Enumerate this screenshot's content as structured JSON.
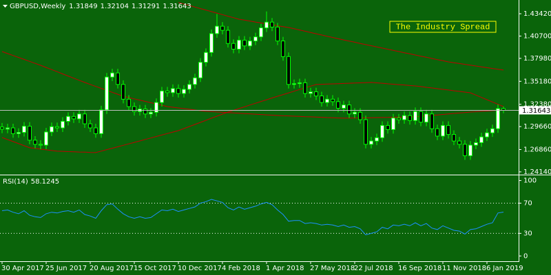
{
  "chart_data": [
    {
      "type": "candlestick",
      "title": "GBPUSD,Weekly",
      "annotation": "The Industry Spread",
      "up_color": "#ffffff",
      "down_color": "#000000",
      "wick_color": "#00ff00",
      "categories": [
        "30 Apr 2017",
        null,
        null,
        null,
        null,
        null,
        null,
        null,
        "25 Jun 2017",
        null,
        null,
        null,
        null,
        null,
        null,
        null,
        "20 Aug 2017",
        null,
        null,
        null,
        null,
        null,
        null,
        null,
        "15 Oct 2017",
        null,
        null,
        null,
        null,
        null,
        null,
        null,
        "10 Dec 2017",
        null,
        null,
        null,
        null,
        null,
        null,
        null,
        "4 Feb 2018",
        null,
        null,
        null,
        null,
        null,
        null,
        null,
        "1 Apr 2018",
        null,
        null,
        null,
        null,
        null,
        null,
        null,
        "27 May 2018",
        null,
        null,
        null,
        null,
        null,
        null,
        null,
        "22 Jul 2018",
        null,
        null,
        null,
        null,
        null,
        null,
        null,
        "16 Sep 2018",
        null,
        null,
        null,
        null,
        null,
        null,
        null,
        "11 Nov 2018",
        null,
        null,
        null,
        null,
        null,
        null,
        null,
        "6 Jan 2019",
        null,
        null,
        null
      ],
      "open": [
        1.296,
        1.2935,
        1.295,
        1.288,
        1.2895,
        1.297,
        1.28,
        1.275,
        1.274,
        1.29,
        1.2965,
        1.295,
        1.303,
        1.309,
        1.306,
        1.312,
        1.3,
        1.295,
        1.288,
        1.317,
        1.357,
        1.362,
        1.348,
        1.33,
        1.321,
        1.315,
        1.318,
        1.312,
        1.314,
        1.326,
        1.34,
        1.338,
        1.343,
        1.337,
        1.342,
        1.348,
        1.356,
        1.375,
        1.387,
        1.41,
        1.419,
        1.414,
        1.398,
        1.391,
        1.402,
        1.395,
        1.401,
        1.406,
        1.417,
        1.424,
        1.418,
        1.401,
        1.382,
        1.348,
        1.349,
        1.35,
        1.337,
        1.339,
        1.334,
        1.326,
        1.33,
        1.327,
        1.319,
        1.323,
        1.312,
        1.314,
        1.305,
        1.275,
        1.279,
        1.283,
        1.298,
        1.293,
        1.307,
        1.305,
        1.31,
        1.304,
        1.315,
        1.302,
        1.312,
        1.294,
        1.285,
        1.298,
        1.287,
        1.279,
        1.275,
        1.261,
        1.274,
        1.277,
        1.284,
        1.289,
        1.294,
        1.31849
      ],
      "high": [
        1.301,
        1.3,
        1.3,
        1.2945,
        1.302,
        1.302,
        1.285,
        1.28,
        1.295,
        1.3015,
        1.3015,
        1.308,
        1.314,
        1.314,
        1.317,
        1.317,
        1.305,
        1.3,
        1.322,
        1.362,
        1.367,
        1.367,
        1.353,
        1.335,
        1.326,
        1.323,
        1.323,
        1.319,
        1.331,
        1.345,
        1.345,
        1.348,
        1.348,
        1.347,
        1.353,
        1.361,
        1.38,
        1.392,
        1.415,
        1.434,
        1.424,
        1.419,
        1.403,
        1.407,
        1.407,
        1.406,
        1.411,
        1.422,
        1.437,
        1.429,
        1.423,
        1.406,
        1.387,
        1.354,
        1.355,
        1.355,
        1.344,
        1.344,
        1.339,
        1.335,
        1.335,
        1.332,
        1.328,
        1.328,
        1.319,
        1.319,
        1.31,
        1.284,
        1.288,
        1.303,
        1.303,
        1.312,
        1.312,
        1.315,
        1.315,
        1.32,
        1.32,
        1.317,
        1.317,
        1.299,
        1.303,
        1.303,
        1.292,
        1.284,
        1.28,
        1.279,
        1.282,
        1.289,
        1.294,
        1.299,
        1.3235,
        1.32104
      ],
      "low": [
        1.2885,
        1.2885,
        1.283,
        1.283,
        1.2845,
        1.275,
        1.27,
        1.269,
        1.269,
        1.285,
        1.29,
        1.29,
        1.298,
        1.301,
        1.301,
        1.295,
        1.29,
        1.283,
        1.283,
        1.312,
        1.352,
        1.343,
        1.325,
        1.316,
        1.31,
        1.31,
        1.307,
        1.307,
        1.309,
        1.321,
        1.333,
        1.333,
        1.332,
        1.332,
        1.337,
        1.343,
        1.351,
        1.37,
        1.382,
        1.405,
        1.409,
        1.393,
        1.386,
        1.386,
        1.39,
        1.39,
        1.396,
        1.401,
        1.412,
        1.413,
        1.396,
        1.377,
        1.343,
        1.343,
        1.344,
        1.332,
        1.332,
        1.329,
        1.321,
        1.321,
        1.322,
        1.314,
        1.314,
        1.307,
        1.307,
        1.3,
        1.27,
        1.27,
        1.274,
        1.278,
        1.288,
        1.288,
        1.3,
        1.3,
        1.299,
        1.299,
        1.297,
        1.297,
        1.289,
        1.28,
        1.28,
        1.282,
        1.274,
        1.27,
        1.256,
        1.256,
        1.269,
        1.272,
        1.279,
        1.284,
        1.289,
        1.31291
      ],
      "close": [
        1.2935,
        1.295,
        1.288,
        1.2895,
        1.297,
        1.28,
        1.275,
        1.274,
        1.29,
        1.2965,
        1.295,
        1.303,
        1.309,
        1.306,
        1.312,
        1.3,
        1.295,
        1.288,
        1.317,
        1.357,
        1.362,
        1.348,
        1.33,
        1.321,
        1.315,
        1.318,
        1.312,
        1.314,
        1.326,
        1.34,
        1.338,
        1.343,
        1.337,
        1.342,
        1.348,
        1.356,
        1.375,
        1.387,
        1.41,
        1.419,
        1.414,
        1.398,
        1.391,
        1.402,
        1.395,
        1.401,
        1.406,
        1.417,
        1.424,
        1.418,
        1.401,
        1.382,
        1.348,
        1.349,
        1.35,
        1.337,
        1.339,
        1.334,
        1.326,
        1.33,
        1.327,
        1.319,
        1.323,
        1.312,
        1.314,
        1.305,
        1.275,
        1.279,
        1.283,
        1.298,
        1.293,
        1.307,
        1.305,
        1.31,
        1.304,
        1.315,
        1.302,
        1.312,
        1.294,
        1.285,
        1.298,
        1.287,
        1.279,
        1.275,
        1.261,
        1.274,
        1.277,
        1.284,
        1.289,
        1.294,
        1.31849,
        1.31643
      ],
      "series": [
        {
          "color": "#c00000",
          "values": [
            null,
            null,
            null,
            null,
            null,
            null,
            null,
            null,
            null,
            null,
            null,
            null,
            null,
            null,
            null,
            null,
            null,
            null,
            null,
            null,
            null,
            null,
            null,
            null,
            null,
            null,
            null,
            null,
            null,
            null,
            null,
            null,
            1.448,
            1.4461,
            1.4443,
            1.4424,
            1.4405,
            1.4387,
            1.4368,
            1.435,
            1.4331,
            1.4312,
            1.4294,
            1.4275,
            1.4264,
            1.4253,
            1.4241,
            1.423,
            1.4219,
            1.4208,
            1.4196,
            1.4185,
            1.4174,
            1.4159,
            1.4144,
            1.4129,
            1.4114,
            1.4098,
            1.4083,
            1.4068,
            1.4053,
            1.4038,
            1.4023,
            1.4009,
            1.3995,
            1.398,
            1.3966,
            1.3952,
            1.3938,
            1.3924,
            1.3909,
            1.3895,
            1.3881,
            1.3867,
            1.3853,
            1.3839,
            1.3825,
            1.3811,
            1.3797,
            1.3783,
            1.3769,
            1.3755,
            1.3745,
            1.3735,
            1.3725,
            1.3715,
            1.3705,
            1.3695,
            1.3685,
            1.3675,
            1.3665,
            1.3655
          ]
        },
        {
          "color": "#c00000",
          "values": [
            1.3881,
            1.3857,
            1.3833,
            1.3809,
            1.3785,
            1.3761,
            1.3737,
            1.3713,
            1.3687,
            1.3661,
            1.3635,
            1.3608,
            1.3582,
            1.3556,
            1.353,
            1.3504,
            1.348,
            1.3456,
            1.3432,
            1.3408,
            1.3384,
            1.336,
            1.3336,
            1.332,
            1.3304,
            1.3289,
            1.3273,
            1.3257,
            1.3241,
            1.3226,
            1.321,
            1.3202,
            1.3193,
            1.3185,
            1.3177,
            1.3168,
            1.316,
            1.3152,
            1.3148,
            1.3144,
            1.314,
            1.3136,
            1.3132,
            1.3128,
            1.3125,
            1.3121,
            1.3117,
            1.3113,
            1.3109,
            1.3105,
            1.3101,
            1.3098,
            1.3096,
            1.3093,
            1.309,
            1.3087,
            1.3085,
            1.3082,
            1.3079,
            1.3076,
            1.3074,
            1.3071,
            1.3068,
            1.3069,
            1.3071,
            1.3072,
            1.3073,
            1.3074,
            1.3076,
            1.3077,
            1.3078,
            1.308,
            1.3081,
            1.3082,
            1.3084,
            1.3085,
            1.3091,
            1.3097,
            1.3102,
            1.3108,
            1.3114,
            1.312,
            1.3126,
            1.3131,
            1.3137,
            1.3143,
            1.3147,
            1.3152,
            1.3156,
            1.316,
            1.3165,
            1.3169
          ]
        },
        {
          "color": "#c00000",
          "values": [
            1.2833,
            1.2808,
            1.2783,
            1.2758,
            1.2733,
            1.2708,
            1.27,
            1.2691,
            1.2683,
            1.2674,
            1.2666,
            1.2664,
            1.2661,
            1.2659,
            1.2656,
            1.2654,
            1.2651,
            1.2649,
            1.2667,
            1.2685,
            1.2702,
            1.272,
            1.2738,
            1.2756,
            1.2773,
            1.2791,
            1.2809,
            1.2827,
            1.2845,
            1.2863,
            1.2881,
            1.2899,
            1.2917,
            1.2942,
            1.2967,
            1.2992,
            1.3017,
            1.3042,
            1.3068,
            1.3093,
            1.3118,
            1.3143,
            1.3164,
            1.3186,
            1.3207,
            1.3229,
            1.325,
            1.3272,
            1.3293,
            1.3315,
            1.3336,
            1.3356,
            1.3377,
            1.3397,
            1.3418,
            1.3438,
            1.3459,
            1.3479,
            1.3482,
            1.3484,
            1.3487,
            1.3489,
            1.3492,
            1.3494,
            1.3497,
            1.3499,
            1.3502,
            1.3504,
            1.3499,
            1.3494,
            1.3488,
            1.3483,
            1.3478,
            1.3473,
            1.3467,
            1.3462,
            1.3454,
            1.3445,
            1.3437,
            1.3428,
            1.342,
            1.3412,
            1.3403,
            1.3395,
            1.3386,
            1.3378,
            1.335,
            1.3322,
            1.3294,
            1.3266,
            1.3238,
            1.321
          ]
        }
      ],
      "ylim": [
        1.238,
        1.4493
      ],
      "yticks": [
        {
          "value": 1.4342,
          "label": "1.43420"
        },
        {
          "value": 1.407,
          "label": "1.40700"
        },
        {
          "value": 1.3798,
          "label": "1.37980"
        },
        {
          "value": 1.3518,
          "label": "1.35180"
        },
        {
          "value": 1.3238,
          "label": "1.32380"
        },
        {
          "value": 1.2966,
          "label": "1.29660"
        },
        {
          "value": 1.2686,
          "label": "1.26860"
        },
        {
          "value": 1.2414,
          "label": "1.24140"
        }
      ]
    },
    {
      "type": "line",
      "title": "RSI(14)",
      "series": [
        {
          "color": "#1e90ff",
          "values": [
            60,
            61,
            58,
            56,
            60,
            54,
            52,
            51,
            56,
            58,
            57,
            59,
            60,
            58,
            61,
            55,
            53,
            50,
            60,
            68,
            69,
            62,
            56,
            52,
            50,
            52,
            50,
            51,
            56,
            61,
            60,
            62,
            59,
            61,
            63,
            65,
            70,
            72,
            75,
            73,
            71,
            64,
            61,
            65,
            62,
            64,
            66,
            69,
            71,
            68,
            61,
            55,
            46,
            47,
            47,
            43,
            44,
            43,
            41,
            42,
            41,
            39,
            41,
            38,
            39,
            36,
            28,
            30,
            32,
            38,
            36,
            41,
            40,
            42,
            40,
            44,
            40,
            43,
            37,
            35,
            40,
            37,
            34,
            33,
            29,
            35,
            36,
            39,
            42,
            44,
            57,
            58.1245
          ]
        }
      ],
      "ylim": [
        -7,
        106
      ],
      "yticks": [
        100,
        70,
        30,
        0
      ]
    }
  ]
}
